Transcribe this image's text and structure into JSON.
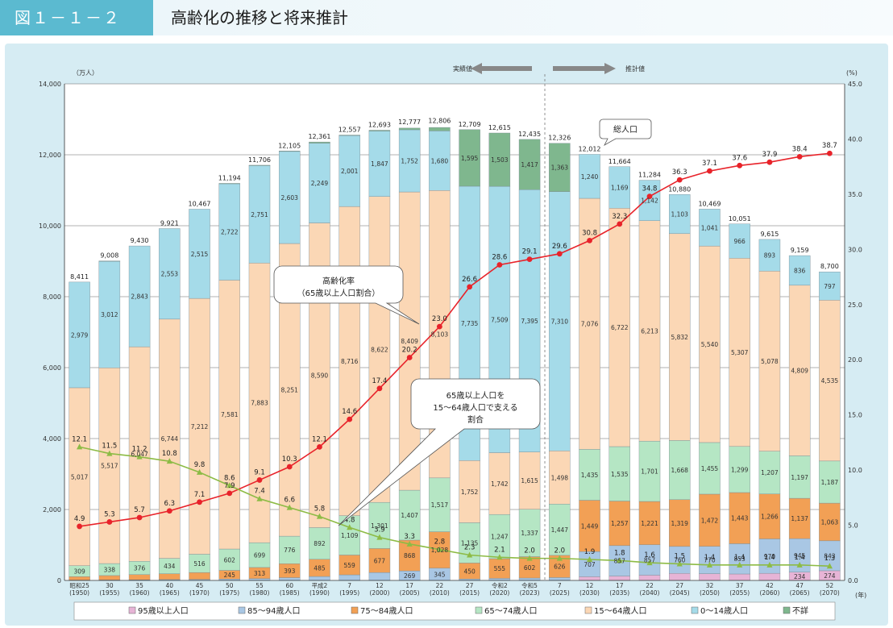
{
  "header": {
    "fig_label": "図１－１－２",
    "title": "高齢化の推移と将来推計"
  },
  "annotations": {
    "actual": "実績値",
    "projection": "推計値",
    "total_pop": "総人口",
    "aging_rate_line1": "高齢化率",
    "aging_rate_line2": "（65歳以上人口割合）",
    "support_line1": "65歳以上人口を",
    "support_line2": "15～64歳人口で支える",
    "support_line3": "割合"
  },
  "colors": {
    "age95": "#e7b4d6",
    "age85": "#a9c7e4",
    "age75": "#f2a055",
    "age65": "#b5e6c4",
    "age15": "#fbd7b5",
    "age0": "#a5dbe9",
    "rate_line": "#e8232a",
    "support_line": "#8dbb45",
    "grid": "#555555"
  },
  "chart_data": {
    "type": "bar",
    "title": "",
    "y_left_label": "（万人）",
    "y_right_label": "(%)",
    "x_unit": "(年)",
    "ylim_left": [
      0,
      14000
    ],
    "ylim_right": [
      0,
      45
    ],
    "y_left_ticks": [
      "0",
      "2,000",
      "4,000",
      "6,000",
      "8,000",
      "10,000",
      "12,000",
      "14,000"
    ],
    "y_right_ticks": [
      "0.0",
      "5.0",
      "10.0",
      "15.0",
      "20.0",
      "25.0",
      "30.0",
      "35.0",
      "40.0",
      "45.0"
    ],
    "projection_starts_index": 15,
    "categories": [
      {
        "era": "昭和25",
        "year": "(1950)"
      },
      {
        "era": "30",
        "year": "(1955)"
      },
      {
        "era": "35",
        "year": "(1960)"
      },
      {
        "era": "40",
        "year": "(1965)"
      },
      {
        "era": "45",
        "year": "(1970)"
      },
      {
        "era": "50",
        "year": "(1975)"
      },
      {
        "era": "55",
        "year": "(1980)"
      },
      {
        "era": "60",
        "year": "(1985)"
      },
      {
        "era": "平成2",
        "year": "(1990)"
      },
      {
        "era": "7",
        "year": "(1995)"
      },
      {
        "era": "12",
        "year": "(2000)"
      },
      {
        "era": "17",
        "year": "(2005)"
      },
      {
        "era": "22",
        "year": "(2010)"
      },
      {
        "era": "27",
        "year": "(2015)"
      },
      {
        "era": "令和2",
        "year": "(2020)"
      },
      {
        "era": "令和5",
        "year": "(2023)"
      },
      {
        "era": "7",
        "year": "(2025)"
      },
      {
        "era": "12",
        "year": "(2030)"
      },
      {
        "era": "17",
        "year": "(2035)"
      },
      {
        "era": "22",
        "year": "(2040)"
      },
      {
        "era": "27",
        "year": "(2045)"
      },
      {
        "era": "32",
        "year": "(2050)"
      },
      {
        "era": "37",
        "year": "(2055)"
      },
      {
        "era": "42",
        "year": "(2060)"
      },
      {
        "era": "47",
        "year": "(2065)"
      },
      {
        "era": "52",
        "year": "(2070)"
      }
    ],
    "series": [
      {
        "name": "95歳以上人口",
        "key": "age95",
        "values": [
          0,
          0,
          0,
          0,
          0,
          0,
          0,
          0,
          0,
          0,
          0,
          0,
          0,
          0,
          0,
          0,
          0,
          105,
          124,
          149,
          198,
          191,
          182,
          201,
          234,
          274
        ]
      },
      {
        "name": "85～94歳人口",
        "key": "age85",
        "values": [
          10,
          13,
          19,
          25,
          30,
          39,
          53,
          79,
          112,
          158,
          223,
          269,
          345,
          42,
          58,
          68,
          81,
          707,
          857,
          857,
          760,
          770,
          853,
          970,
          945,
          843
        ]
      },
      {
        "name": "75～84歳人口",
        "key": "age75",
        "values": [
          97,
          125,
          145,
          164,
          194,
          245,
          313,
          393,
          485,
          559,
          677,
          868,
          1028,
          450,
          555,
          602,
          626,
          1449,
          1257,
          1221,
          1319,
          1472,
          1443,
          1266,
          1137,
          1063
        ]
      },
      {
        "name": "65～74歳人口",
        "key": "age65",
        "values": [
          309,
          338,
          376,
          434,
          516,
          602,
          699,
          776,
          892,
          1109,
          1301,
          1407,
          1517,
          1135,
          1247,
          1337,
          1447,
          1435,
          1535,
          1701,
          1668,
          1455,
          1299,
          1207,
          1197,
          1187
        ]
      },
      {
        "name": "15～64歳人口",
        "key": "age15",
        "values": [
          5017,
          5517,
          6047,
          6744,
          7212,
          7581,
          7883,
          8251,
          8590,
          8716,
          8622,
          8409,
          8103,
          1752,
          1742,
          1615,
          1498,
          7076,
          6722,
          6213,
          5832,
          5540,
          5307,
          5078,
          4809,
          4535
        ]
      },
      {
        "name": "0～14歳人口",
        "key": "age0",
        "values": [
          2979,
          3012,
          2843,
          2553,
          2515,
          2722,
          2751,
          2603,
          2249,
          2001,
          1847,
          1752,
          1680,
          7735,
          7509,
          7395,
          7310,
          1240,
          1169,
          1142,
          1103,
          1041,
          966,
          893,
          836,
          797
        ]
      },
      {
        "name": "不詳",
        "key": "unknown",
        "values": [
          0,
          2,
          0,
          0,
          0,
          5,
          7,
          4,
          33,
          13,
          23,
          48,
          98,
          1595,
          1503,
          1417,
          1363,
          0,
          0,
          0,
          0,
          0,
          0,
          0,
          0,
          0
        ]
      }
    ],
    "totals": [
      8411,
      9008,
      9430,
      9921,
      10467,
      11194,
      11706,
      12105,
      12361,
      12557,
      12693,
      12777,
      12806,
      12709,
      12615,
      12435,
      12326,
      12012,
      11664,
      11284,
      10880,
      10469,
      10051,
      9615,
      9159,
      8700
    ],
    "aging_rate": [
      4.9,
      5.3,
      5.7,
      6.3,
      7.1,
      7.9,
      9.1,
      10.3,
      12.1,
      14.6,
      17.4,
      20.2,
      23.0,
      26.6,
      28.6,
      29.1,
      29.6,
      30.8,
      32.3,
      34.8,
      36.3,
      37.1,
      37.6,
      37.9,
      38.4,
      38.7
    ],
    "support_ratio": [
      12.1,
      11.5,
      11.2,
      10.8,
      9.8,
      8.6,
      7.4,
      6.6,
      5.8,
      4.8,
      3.9,
      3.3,
      2.8,
      2.3,
      2.1,
      2.0,
      2.0,
      1.9,
      1.8,
      1.6,
      1.5,
      1.4,
      1.4,
      1.4,
      1.4,
      1.3
    ],
    "legend": [
      "95歳以上人口",
      "85～94歳人口",
      "75～84歳人口",
      "65～74歳人口",
      "15～64歳人口",
      "0～14歳人口",
      "不詳"
    ]
  }
}
